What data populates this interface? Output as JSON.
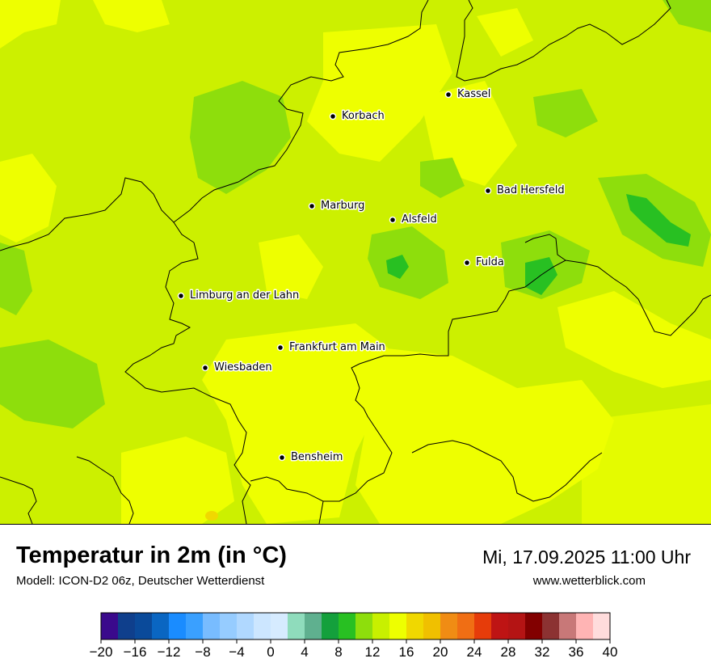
{
  "title": "Temperatur in 2m (in °C)",
  "subtitle": "Modell: ICON-D2 06z, Deutscher Wetterdienst",
  "datetime": "Mi, 17.09.2025 11:00 Uhr",
  "website": "www.wetterblick.com",
  "cities": [
    {
      "name": "Kassel"
    },
    {
      "name": "Korbach"
    },
    {
      "name": "Bad Hersfeld"
    },
    {
      "name": "Marburg"
    },
    {
      "name": "Alsfeld"
    },
    {
      "name": "Fulda"
    },
    {
      "name": "Limburg an der Lahn"
    },
    {
      "name": "Frankfurt am Main"
    },
    {
      "name": "Wiesbaden"
    },
    {
      "name": "Bensheim"
    }
  ],
  "legend": {
    "min": -20,
    "max": 40,
    "step": 2,
    "colors": [
      "#3a0a8c",
      "#0f3f8c",
      "#0a4a9a",
      "#0a66c2",
      "#1a8cff",
      "#3aa0ff",
      "#78bcff",
      "#96ccff",
      "#b0d8ff",
      "#cce6ff",
      "#d6ebff",
      "#8fdcbc",
      "#5fb08f",
      "#14a03c",
      "#28c022",
      "#8ede0c",
      "#c8f000",
      "#eeff00",
      "#f0d800",
      "#f0c000",
      "#f08c14",
      "#f06e14",
      "#e63c0a",
      "#be1414",
      "#b41414",
      "#820000",
      "#8c3232",
      "#c87878",
      "#ffb4b4",
      "#ffdcdc"
    ],
    "ticks": [
      "−20",
      "−16",
      "−12",
      "−8",
      "−4",
      "0",
      "4",
      "8",
      "12",
      "16",
      "20",
      "24",
      "28",
      "32",
      "36",
      "40"
    ]
  }
}
